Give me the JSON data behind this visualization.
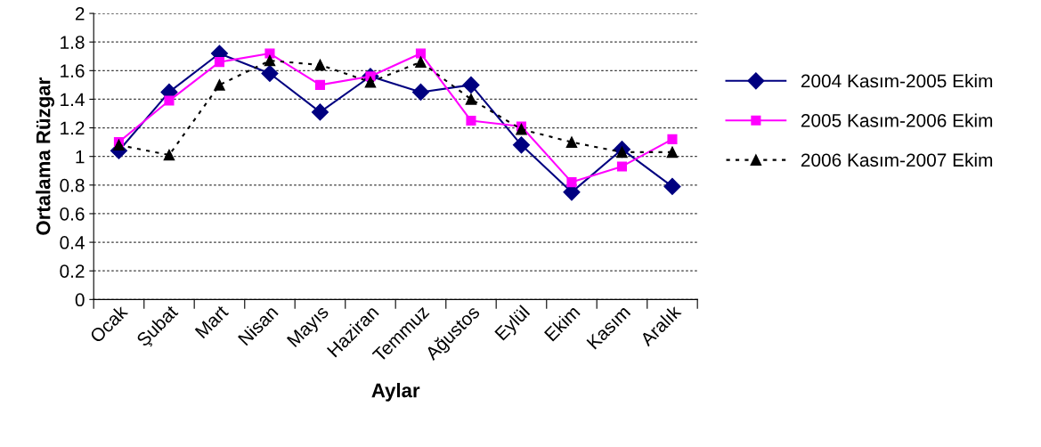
{
  "chart_data": {
    "type": "line",
    "xlabel": "Aylar",
    "ylabel": "Ortalama Rüzgar",
    "categories": [
      "Ocak",
      "Şubat",
      "Mart",
      "Nisan",
      "Mayıs",
      "Haziran",
      "Temmuz",
      "Ağustos",
      "Eylül",
      "Ekim",
      "Kasım",
      "Aralık"
    ],
    "series": [
      {
        "name": "2004 Kasım-2005 Ekim",
        "color": "#000080",
        "marker": "diamond",
        "line_style": "solid",
        "values": [
          1.04,
          1.45,
          1.72,
          1.58,
          1.31,
          1.56,
          1.45,
          1.5,
          1.08,
          0.75,
          1.05,
          0.79
        ]
      },
      {
        "name": "2005 Kasım-2006 Ekim",
        "color": "#ff00ff",
        "marker": "square",
        "line_style": "solid",
        "values": [
          1.1,
          1.39,
          1.66,
          1.72,
          1.5,
          1.56,
          1.72,
          1.25,
          1.21,
          0.82,
          0.93,
          1.12
        ]
      },
      {
        "name": "2006 Kasım-2007 Ekim",
        "color": "#000000",
        "marker": "triangle",
        "line_style": "dotted",
        "values": [
          1.08,
          1.01,
          1.5,
          1.67,
          1.64,
          1.52,
          1.66,
          1.4,
          1.19,
          1.1,
          1.03,
          1.03
        ]
      }
    ],
    "ylim": [
      0,
      2
    ],
    "yticks": [
      0,
      0.2,
      0.4,
      0.6,
      0.8,
      1,
      1.2,
      1.4,
      1.6,
      1.8,
      2
    ],
    "grid": "y",
    "legend": "right"
  }
}
